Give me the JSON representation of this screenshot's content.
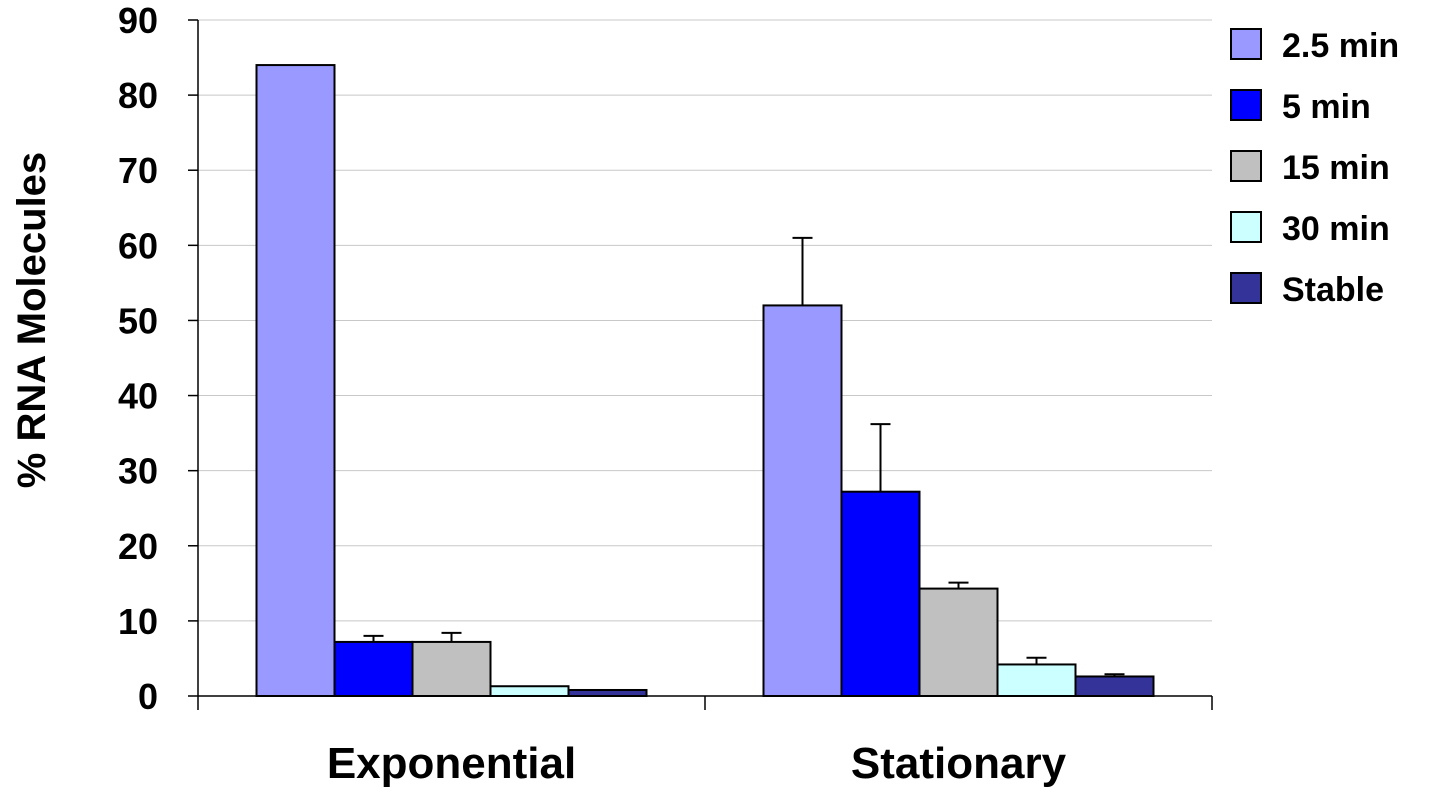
{
  "chart_data": {
    "type": "bar",
    "title": "",
    "xlabel": "",
    "ylabel": "% RNA Molecules",
    "ylim": [
      0,
      90
    ],
    "yticks": [
      0,
      10,
      20,
      30,
      40,
      50,
      60,
      70,
      80,
      90
    ],
    "grid": true,
    "legend_position": "right",
    "categories": [
      "Exponential",
      "Stationary"
    ],
    "series": [
      {
        "name": "2.5 min",
        "color": "#9999ff",
        "values": [
          84,
          52
        ],
        "errors": [
          null,
          9
        ]
      },
      {
        "name": "5 min",
        "color": "#0000ff",
        "values": [
          7.2,
          27.2
        ],
        "errors": [
          0.8,
          9
        ]
      },
      {
        "name": "15 min",
        "color": "#c0c0c0",
        "values": [
          7.2,
          14.3
        ],
        "errors": [
          1.2,
          0.8
        ]
      },
      {
        "name": "30 min",
        "color": "#ccffff",
        "values": [
          1.3,
          4.2
        ],
        "errors": [
          null,
          0.9
        ]
      },
      {
        "name": "Stable",
        "color": "#333399",
        "values": [
          0.8,
          2.6
        ],
        "errors": [
          null,
          0.3
        ]
      }
    ]
  }
}
